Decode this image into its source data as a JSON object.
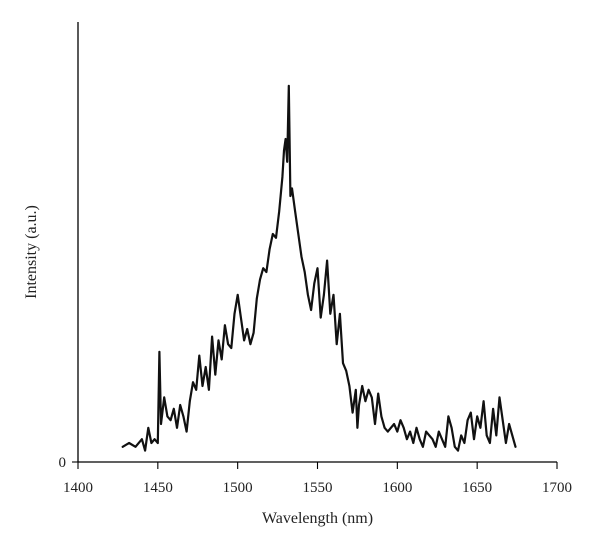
{
  "chart_data": {
    "type": "line",
    "title": "",
    "xlabel": "Wavelength (nm)",
    "ylabel": "Intensity (a.u.)",
    "xlim": [
      1400,
      1700
    ],
    "ylim": [
      0,
      100
    ],
    "x_ticks": [
      1400,
      1450,
      1500,
      1550,
      1600,
      1650,
      1700
    ],
    "y_ticks": [
      0
    ],
    "grid": false,
    "legend": "none",
    "series": [
      {
        "line_color": "#111111",
        "x": [
          1428,
          1432,
          1436,
          1440,
          1442,
          1444,
          1446,
          1448,
          1450,
          1451,
          1452,
          1454,
          1456,
          1458,
          1460,
          1462,
          1464,
          1466,
          1468,
          1470,
          1472,
          1474,
          1476,
          1478,
          1480,
          1482,
          1484,
          1486,
          1488,
          1490,
          1492,
          1494,
          1496,
          1498,
          1500,
          1502,
          1504,
          1506,
          1508,
          1510,
          1512,
          1514,
          1516,
          1518,
          1520,
          1522,
          1524,
          1526,
          1528,
          1529,
          1530,
          1531,
          1532,
          1533,
          1534,
          1536,
          1538,
          1540,
          1542,
          1544,
          1546,
          1548,
          1550,
          1552,
          1554,
          1556,
          1558,
          1560,
          1562,
          1564,
          1566,
          1568,
          1570,
          1572,
          1574,
          1575,
          1576,
          1578,
          1580,
          1582,
          1584,
          1586,
          1588,
          1590,
          1592,
          1594,
          1596,
          1598,
          1600,
          1602,
          1604,
          1606,
          1608,
          1610,
          1612,
          1614,
          1616,
          1618,
          1620,
          1622,
          1624,
          1626,
          1628,
          1630,
          1632,
          1634,
          1636,
          1638,
          1640,
          1642,
          1644,
          1646,
          1648,
          1650,
          1652,
          1654,
          1656,
          1658,
          1660,
          1662,
          1664,
          1666,
          1668,
          1670,
          1672,
          1674
        ],
        "values": [
          4,
          5,
          4,
          6,
          3,
          9,
          5,
          6,
          5,
          29,
          10,
          17,
          12,
          11,
          14,
          9,
          15,
          12,
          8,
          16,
          21,
          19,
          28,
          20,
          25,
          19,
          33,
          23,
          32,
          27,
          36,
          31,
          30,
          39,
          44,
          38,
          32,
          35,
          31,
          34,
          43,
          48,
          51,
          50,
          56,
          60,
          59,
          66,
          75,
          82,
          85,
          79,
          99,
          70,
          72,
          66,
          60,
          54,
          50,
          44,
          40,
          47,
          51,
          38,
          44,
          53,
          39,
          44,
          31,
          39,
          26,
          24,
          20,
          13,
          19,
          9,
          15,
          20,
          16,
          19,
          17,
          10,
          18,
          12,
          9,
          8,
          9,
          10,
          8,
          11,
          9,
          6,
          8,
          5,
          9,
          6,
          4,
          8,
          7,
          6,
          4,
          8,
          6,
          4,
          12,
          9,
          4,
          3,
          7,
          5,
          11,
          13,
          6,
          12,
          9,
          16,
          7,
          5,
          14,
          7,
          17,
          11,
          5,
          10,
          7,
          4
        ]
      }
    ]
  }
}
